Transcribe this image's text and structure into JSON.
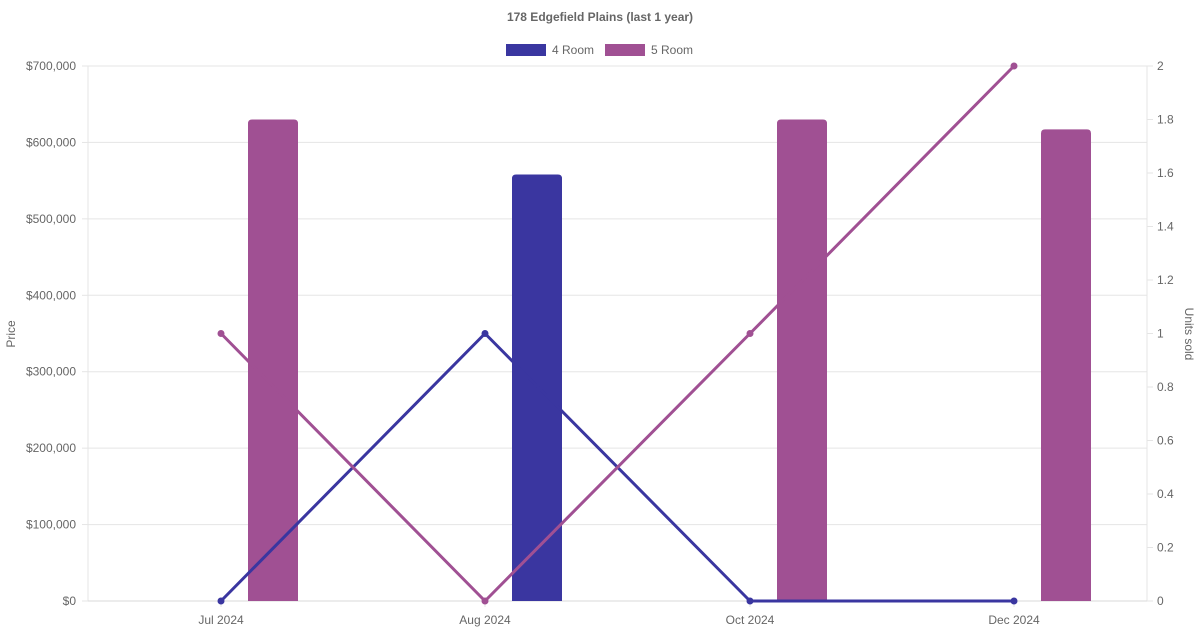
{
  "chart_data": {
    "type": "bar",
    "title": "178 Edgefield  Plains (last 1 year)",
    "categories": [
      "Jul 2024",
      "Aug 2024",
      "Oct 2024",
      "Dec 2024"
    ],
    "legend": {
      "placement": "top-center"
    },
    "series": [
      {
        "name": "4 Room",
        "color": "#3a36a0",
        "price": [
          null,
          558000,
          null,
          null
        ],
        "units_sold": [
          0,
          1,
          0,
          0
        ]
      },
      {
        "name": "5 Room",
        "color": "#a05093",
        "price": [
          630000,
          null,
          630000,
          617000
        ],
        "units_sold": [
          1,
          0,
          1,
          2
        ]
      }
    ],
    "y_left": {
      "label": "Price",
      "range": [
        0,
        700000
      ],
      "ticks": [
        "$0",
        "$100,000",
        "$200,000",
        "$300,000",
        "$400,000",
        "$500,000",
        "$600,000",
        "$700,000"
      ]
    },
    "y_right": {
      "label": "Units sold",
      "range": [
        0,
        2
      ],
      "ticks": [
        "0",
        "0.2",
        "0.4",
        "0.6",
        "0.8",
        "1",
        "1.2",
        "1.4",
        "1.6",
        "1.8",
        "2"
      ]
    },
    "grid": true
  }
}
